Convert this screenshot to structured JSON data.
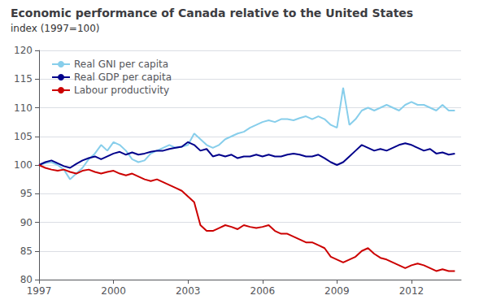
{
  "chart_data": {
    "type": "line",
    "title": "Economic performance of Canada relative to the United States",
    "subtitle": "index (1997=100)",
    "x": [
      1997.0,
      1997.25,
      1997.5,
      1997.75,
      1998.0,
      1998.25,
      1998.5,
      1998.75,
      1999.0,
      1999.25,
      1999.5,
      1999.75,
      2000.0,
      2000.25,
      2000.5,
      2000.75,
      2001.0,
      2001.25,
      2001.5,
      2001.75,
      2002.0,
      2002.25,
      2002.5,
      2002.75,
      2003.0,
      2003.25,
      2003.5,
      2003.75,
      2004.0,
      2004.25,
      2004.5,
      2004.75,
      2005.0,
      2005.25,
      2005.5,
      2005.75,
      2006.0,
      2006.25,
      2006.5,
      2006.75,
      2007.0,
      2007.25,
      2007.5,
      2007.75,
      2008.0,
      2008.25,
      2008.5,
      2008.75,
      2009.0,
      2009.25,
      2009.5,
      2009.75,
      2010.0,
      2010.25,
      2010.5,
      2010.75,
      2011.0,
      2011.25,
      2011.5,
      2011.75,
      2012.0,
      2012.25,
      2012.5,
      2012.75,
      2013.0,
      2013.25,
      2013.5,
      2013.75
    ],
    "series": [
      {
        "name": "Real GNI per capita",
        "color": "#87CEEB",
        "values": [
          100.0,
          100.3,
          100.5,
          100.0,
          99.2,
          97.5,
          98.5,
          99.5,
          101.0,
          102.0,
          103.5,
          102.5,
          104.0,
          103.5,
          102.5,
          101.0,
          100.5,
          100.8,
          102.0,
          102.5,
          103.0,
          103.5,
          103.0,
          103.2,
          103.5,
          105.5,
          104.5,
          103.5,
          103.0,
          103.5,
          104.5,
          105.0,
          105.5,
          105.8,
          106.5,
          107.0,
          107.5,
          107.8,
          107.5,
          108.0,
          108.0,
          107.8,
          108.2,
          108.5,
          108.0,
          108.5,
          108.0,
          107.0,
          106.5,
          113.5,
          107.0,
          108.0,
          109.5,
          110.0,
          109.5,
          110.0,
          110.5,
          110.0,
          109.5,
          110.5,
          111.0,
          110.5,
          110.5,
          110.0,
          109.5,
          110.5,
          109.5,
          109.5
        ]
      },
      {
        "name": "Real GDP per capita",
        "color": "#00008B",
        "values": [
          100.0,
          100.5,
          100.8,
          100.3,
          99.8,
          99.5,
          100.2,
          100.8,
          101.2,
          101.5,
          101.0,
          101.5,
          102.0,
          102.3,
          101.8,
          102.2,
          101.8,
          102.0,
          102.3,
          102.5,
          102.5,
          102.8,
          103.0,
          103.2,
          104.0,
          103.5,
          102.5,
          102.8,
          101.5,
          101.8,
          101.5,
          101.8,
          101.2,
          101.5,
          101.5,
          101.8,
          101.5,
          101.8,
          101.5,
          101.5,
          101.8,
          102.0,
          101.8,
          101.5,
          101.5,
          101.8,
          101.2,
          100.5,
          100.0,
          100.5,
          101.5,
          102.5,
          103.5,
          103.0,
          102.5,
          102.8,
          102.5,
          103.0,
          103.5,
          103.8,
          103.5,
          103.0,
          102.5,
          102.8,
          102.0,
          102.2,
          101.8,
          102.0
        ]
      },
      {
        "name": "Labour productivity",
        "color": "#CC0000",
        "values": [
          100.0,
          99.5,
          99.2,
          99.0,
          99.2,
          98.8,
          98.5,
          99.0,
          99.2,
          98.8,
          98.5,
          98.8,
          99.0,
          98.5,
          98.2,
          98.5,
          98.0,
          97.5,
          97.2,
          97.5,
          97.0,
          96.5,
          96.0,
          95.5,
          94.5,
          93.5,
          89.5,
          88.5,
          88.5,
          89.0,
          89.5,
          89.2,
          88.8,
          89.5,
          89.2,
          89.0,
          89.2,
          89.5,
          88.5,
          88.0,
          88.0,
          87.5,
          87.0,
          86.5,
          86.5,
          86.0,
          85.5,
          84.0,
          83.5,
          83.0,
          83.5,
          84.0,
          85.0,
          85.5,
          84.5,
          83.8,
          83.5,
          83.0,
          82.5,
          82.0,
          82.5,
          82.8,
          82.5,
          82.0,
          81.5,
          81.8,
          81.5,
          81.5
        ]
      }
    ],
    "xlim": [
      1997,
      2014.0
    ],
    "ylim": [
      80,
      120
    ],
    "xticks": [
      1997,
      2000,
      2003,
      2006,
      2009,
      2012
    ],
    "yticks": [
      80,
      85,
      90,
      95,
      100,
      105,
      110,
      115,
      120
    ],
    "grid": true,
    "legend": "upper left"
  }
}
